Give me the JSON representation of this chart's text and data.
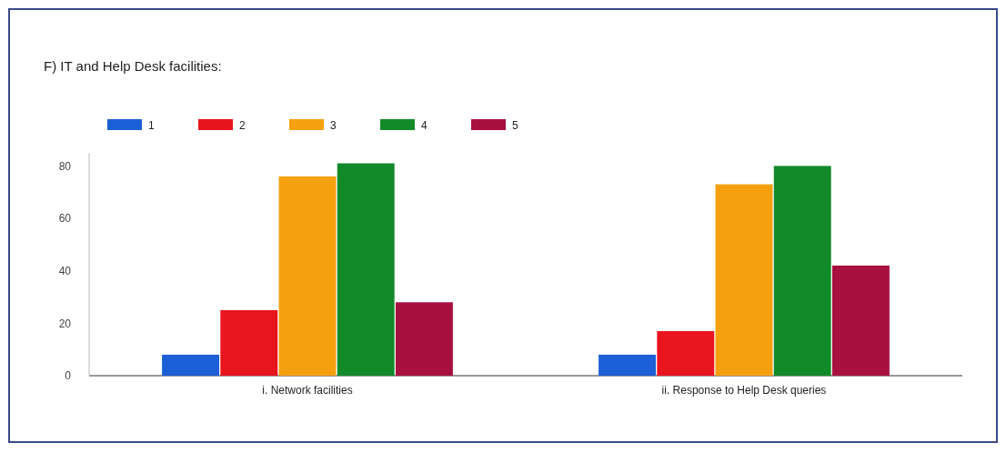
{
  "chart_data": {
    "type": "bar",
    "title": "F) IT and Help Desk facilities:",
    "categories": [
      "i. Network facilities",
      "ii. Response to Help Desk queries"
    ],
    "series": [
      {
        "name": "1",
        "color": "#1c5fd6",
        "values": [
          8,
          8
        ]
      },
      {
        "name": "2",
        "color": "#e8141e",
        "values": [
          25,
          17
        ]
      },
      {
        "name": "3",
        "color": "#f5a00f",
        "values": [
          76,
          73
        ]
      },
      {
        "name": "4",
        "color": "#138a2a",
        "values": [
          81,
          80
        ]
      },
      {
        "name": "5",
        "color": "#a8103f",
        "values": [
          28,
          42
        ]
      }
    ],
    "ylim": [
      0,
      85
    ],
    "yticks": [
      0,
      20,
      40,
      60,
      80
    ],
    "legend": "top left"
  }
}
